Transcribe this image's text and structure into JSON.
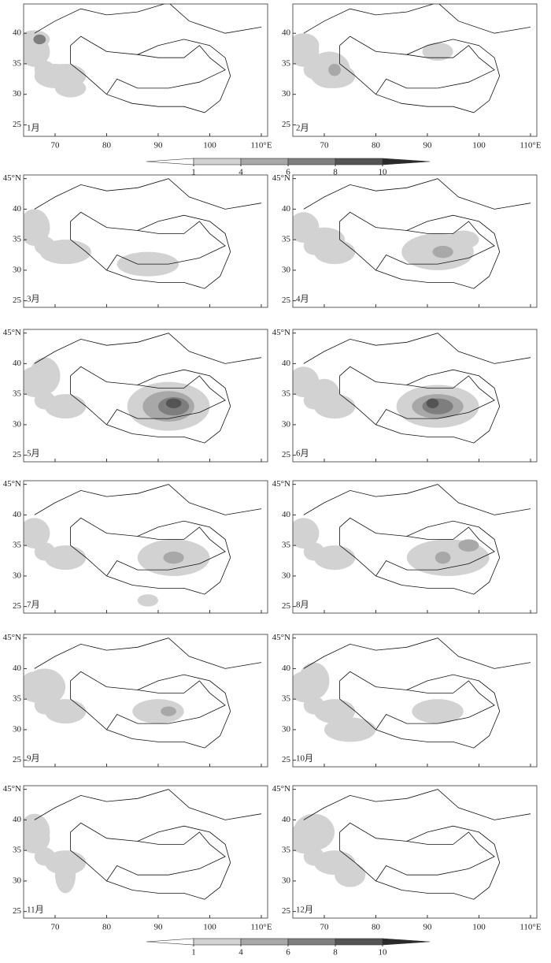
{
  "panels": [
    {
      "label": "1月"
    },
    {
      "label": "2月"
    },
    {
      "label": "3月"
    },
    {
      "label": "4月"
    },
    {
      "label": "5月"
    },
    {
      "label": "6月"
    },
    {
      "label": "7月"
    },
    {
      "label": "8月"
    },
    {
      "label": "9月"
    },
    {
      "label": "10月"
    },
    {
      "label": "11月"
    },
    {
      "label": "12月"
    }
  ],
  "latitude_ticks": [
    25,
    30,
    35,
    40,
    {
      "value": 45,
      "label": "45°N"
    }
  ],
  "longitude_ticks": [
    70,
    80,
    90,
    100,
    {
      "value": 110,
      "label": "110°E"
    }
  ],
  "colorbar": {
    "labels": [
      1,
      4,
      6,
      8,
      10
    ],
    "colors": [
      "#ffffff",
      "#d2d2d2",
      "#a8a8a8",
      "#7e7e7e",
      "#545454",
      "#2a2a2a"
    ]
  }
}
